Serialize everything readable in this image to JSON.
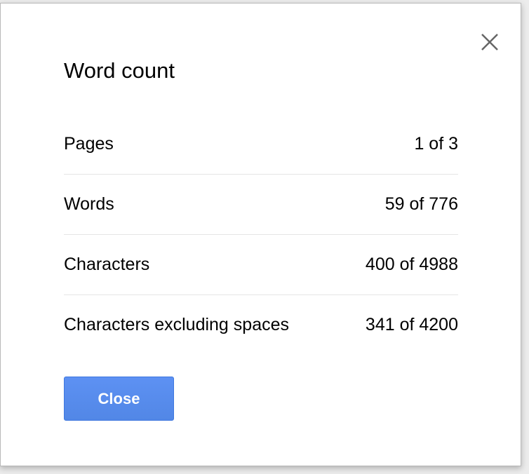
{
  "dialog": {
    "title": "Word count",
    "close_icon": "close-x-icon",
    "rows": [
      {
        "label": "Pages",
        "value": "1 of 3"
      },
      {
        "label": "Words",
        "value": "59 of 776"
      },
      {
        "label": "Characters",
        "value": "400 of 4988"
      },
      {
        "label": "Characters excluding spaces",
        "value": "341 of 4200"
      }
    ],
    "close_button": "Close",
    "accent_color": "#5a8cf0"
  }
}
